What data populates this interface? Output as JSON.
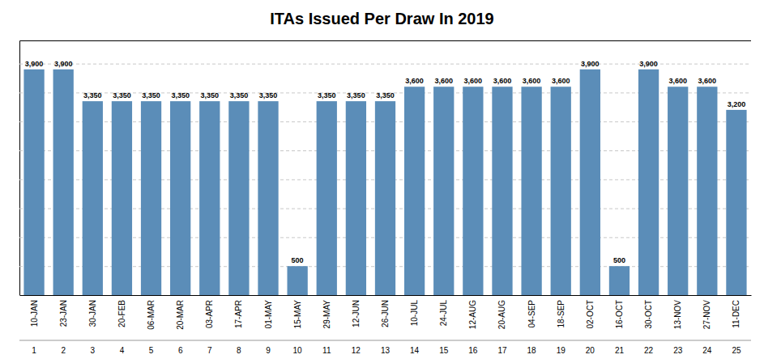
{
  "chart_data": {
    "type": "bar",
    "title": "ITAs Issued Per Draw In 2019",
    "categories": [
      "10-JAN",
      "23-JAN",
      "30-JAN",
      "20-FEB",
      "06-MAR",
      "20-MAR",
      "03-APR",
      "17-APR",
      "01-MAY",
      "15-MAY",
      "29-MAY",
      "12-JUN",
      "26-JUN",
      "10-JUL",
      "24-JUL",
      "12-AUG",
      "20-AUG",
      "04-SEP",
      "18-SEP",
      "02-OCT",
      "16-OCT",
      "30-OCT",
      "13-NOV",
      "27-NOV",
      "11-DEC"
    ],
    "draw_numbers": [
      "1",
      "2",
      "3",
      "4",
      "5",
      "6",
      "7",
      "8",
      "9",
      "10",
      "11",
      "12",
      "13",
      "14",
      "15",
      "16",
      "17",
      "18",
      "19",
      "20",
      "21",
      "22",
      "23",
      "24",
      "25"
    ],
    "values": [
      3900,
      3900,
      3350,
      3350,
      3350,
      3350,
      3350,
      3350,
      3350,
      500,
      3350,
      3350,
      3350,
      3600,
      3600,
      3600,
      3600,
      3600,
      3600,
      3900,
      500,
      3900,
      3600,
      3600,
      3200
    ],
    "value_labels": [
      "3,900",
      "3,900",
      "3,350",
      "3,350",
      "3,350",
      "3,350",
      "3,350",
      "3,350",
      "3,350",
      "500",
      "3,350",
      "3,350",
      "3,350",
      "3,600",
      "3,600",
      "3,600",
      "3,600",
      "3,600",
      "3,600",
      "3,900",
      "500",
      "3,900",
      "3,600",
      "3,600",
      "3,200"
    ],
    "color": "#5B8DB8",
    "ylim": [
      0,
      4400
    ],
    "yticks": [
      0,
      500,
      1000,
      1500,
      2000,
      2500,
      3000,
      3500,
      4000
    ],
    "grid": true,
    "data_labels": true,
    "tick_labels": "x"
  }
}
